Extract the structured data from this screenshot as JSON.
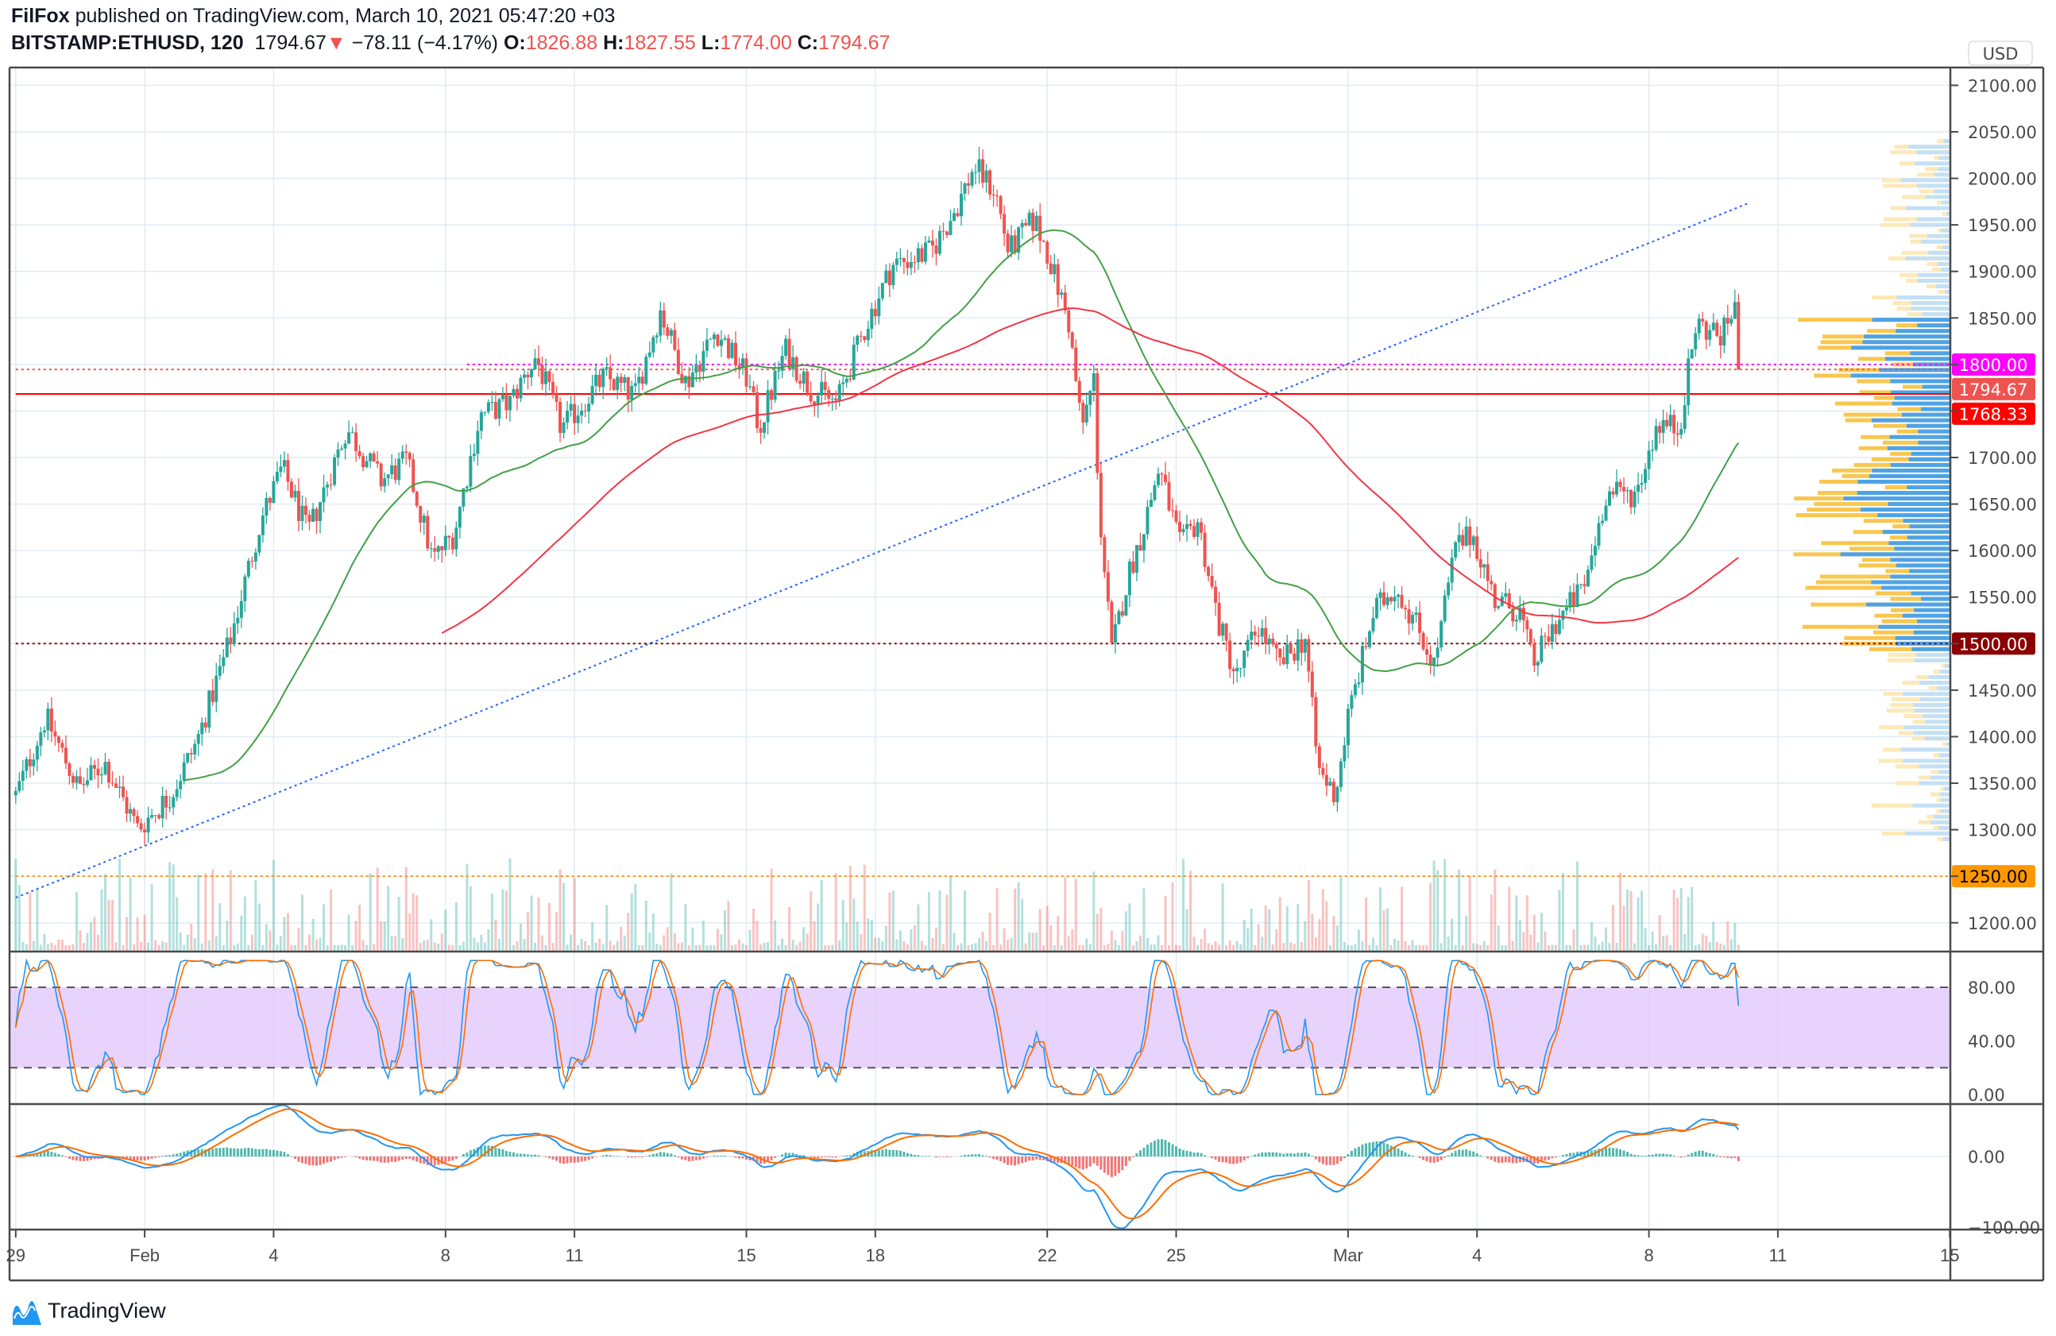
{
  "header": {
    "author": "FilFox",
    "published": "published on TradingView.com, March 10, 2021 05:47:20 +03",
    "symbol": "BITSTAMP:ETHUSD, 120",
    "last": "1794.67",
    "change": "−78.11 (−4.17%)",
    "o_label": "O:",
    "o": "1826.88",
    "h_label": "H:",
    "h": "1827.55",
    "l_label": "L:",
    "l": "1774.00",
    "c_label": "C:",
    "c": "1794.67"
  },
  "currency": "USD",
  "footer": {
    "brand": "TradingView"
  },
  "colors": {
    "up": "#26a69a",
    "down": "#ef5350",
    "ma_green": "#43a047",
    "ma_red": "#f23645",
    "trend": "#2962ff",
    "stoch_k": "#2196f3",
    "stoch_d": "#ff6d00",
    "stoch_band": "#e1c8fb"
  },
  "chart_data": {
    "type": "candlestick",
    "interval": "120",
    "price_range": [
      1150,
      2110
    ],
    "price_tick_step": 50,
    "price_path": [
      [
        0,
        1337
      ],
      [
        0.7,
        1421
      ],
      [
        1.46,
        1344
      ],
      [
        2.07,
        1372
      ],
      [
        2.84,
        1301
      ],
      [
        3.6,
        1337
      ],
      [
        4.2,
        1393
      ],
      [
        5.0,
        1506
      ],
      [
        5.7,
        1632
      ],
      [
        6.2,
        1689
      ],
      [
        6.8,
        1618
      ],
      [
        7.7,
        1731
      ],
      [
        8.5,
        1675
      ],
      [
        9.1,
        1696
      ],
      [
        9.7,
        1590
      ],
      [
        10.2,
        1618
      ],
      [
        10.8,
        1745
      ],
      [
        11.5,
        1759
      ],
      [
        12.1,
        1808
      ],
      [
        12.7,
        1731
      ],
      [
        13.7,
        1787
      ],
      [
        14.4,
        1766
      ],
      [
        15.0,
        1858
      ],
      [
        15.6,
        1780
      ],
      [
        16.3,
        1837
      ],
      [
        17.0,
        1787
      ],
      [
        17.3,
        1731
      ],
      [
        17.9,
        1816
      ],
      [
        18.5,
        1773
      ],
      [
        19.1,
        1759
      ],
      [
        19.8,
        1844
      ],
      [
        20.4,
        1907
      ],
      [
        21.3,
        1921
      ],
      [
        21.9,
        1970
      ],
      [
        22.3,
        2013
      ],
      [
        22.8,
        1985
      ],
      [
        23.1,
        1921
      ],
      [
        23.7,
        1956
      ],
      [
        24.0,
        1921
      ],
      [
        24.5,
        1844
      ],
      [
        24.8,
        1731
      ],
      [
        25.1,
        1787
      ],
      [
        25.2,
        1646
      ],
      [
        25.5,
        1491
      ],
      [
        25.9,
        1576
      ],
      [
        26.2,
        1618
      ],
      [
        26.6,
        1689
      ],
      [
        27.1,
        1604
      ],
      [
        27.5,
        1632
      ],
      [
        28.0,
        1520
      ],
      [
        28.4,
        1463
      ],
      [
        28.9,
        1520
      ],
      [
        29.4,
        1477
      ],
      [
        30.0,
        1506
      ],
      [
        30.3,
        1365
      ],
      [
        30.7,
        1337
      ],
      [
        31.0,
        1421
      ],
      [
        31.6,
        1534
      ],
      [
        32.1,
        1562
      ],
      [
        32.6,
        1520
      ],
      [
        33.0,
        1477
      ],
      [
        33.5,
        1604
      ],
      [
        33.9,
        1618
      ],
      [
        34.4,
        1548
      ],
      [
        35.0,
        1534
      ],
      [
        35.3,
        1477
      ],
      [
        35.8,
        1520
      ],
      [
        36.5,
        1562
      ],
      [
        37.0,
        1661
      ],
      [
        37.7,
        1661
      ],
      [
        38.2,
        1738
      ],
      [
        38.7,
        1731
      ],
      [
        39.1,
        1844
      ],
      [
        39.7,
        1830
      ],
      [
        40.0,
        1865
      ],
      [
        40.1,
        1794.67
      ]
    ],
    "x_ticks": [
      {
        "label": "29",
        "t": 0
      },
      {
        "label": "Feb",
        "t": 3
      },
      {
        "label": "4",
        "t": 6
      },
      {
        "label": "8",
        "t": 10
      },
      {
        "label": "11",
        "t": 13
      },
      {
        "label": "15",
        "t": 17
      },
      {
        "label": "18",
        "t": 20
      },
      {
        "label": "22",
        "t": 24
      },
      {
        "label": "25",
        "t": 27
      },
      {
        "label": "Mar",
        "t": 31
      },
      {
        "label": "4",
        "t": 34
      },
      {
        "label": "8",
        "t": 38
      },
      {
        "label": "11",
        "t": 41
      },
      {
        "label": "15",
        "t": 45
      }
    ],
    "trendline": {
      "from": [
        0,
        1227
      ],
      "to": [
        40.3,
        1973
      ]
    },
    "levels": [
      {
        "price": 1800,
        "label": "1800.00",
        "color": "#ff00ff",
        "text": "#ffffff",
        "style": "dotted",
        "from_t": 10.5
      },
      {
        "price": 1794.67,
        "label": "1794.67",
        "color": "#ef5350",
        "text": "#ffffff",
        "style": "dotted",
        "from_t": 0
      },
      {
        "price": 1768.33,
        "label": "1768.33",
        "color": "#ff0000",
        "text": "#ffffff",
        "style": "solid",
        "from_t": 0
      },
      {
        "price": 1500,
        "label": "1500.00",
        "color": "#8b0000",
        "text": "#ffffff",
        "style": "dotted",
        "from_t": 0
      },
      {
        "price": 1250,
        "label": "1250.00",
        "color": "#ff9800",
        "text": "#000000",
        "style": "dotted",
        "from_t": 0
      }
    ],
    "stoch": {
      "upper": 80,
      "lower": 20,
      "ticks": [
        "80.00",
        "40.00",
        "0.00"
      ]
    },
    "macd": {
      "ticks": [
        "0.00",
        "−100.00"
      ]
    }
  }
}
